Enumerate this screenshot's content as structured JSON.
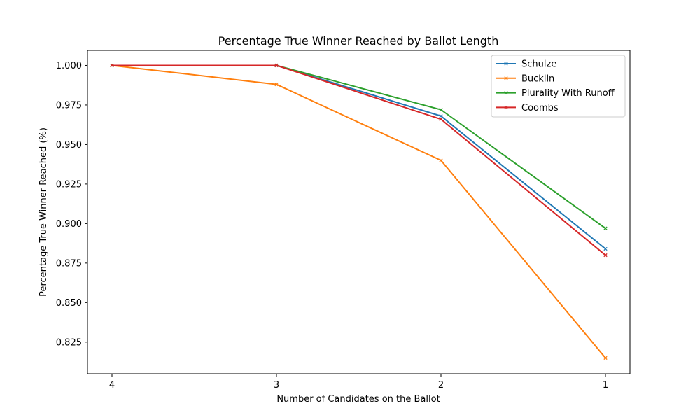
{
  "chart_data": {
    "type": "line",
    "title": "Percentage True Winner Reached by Ballot Length",
    "xlabel": "Number of Candidates on the Ballot",
    "ylabel": "Percentage True Winner Reached (%)",
    "categories": [
      "4",
      "3",
      "2",
      "1"
    ],
    "ylim": [
      0.805,
      1.0095
    ],
    "yticks": [
      "0.825",
      "0.850",
      "0.875",
      "0.900",
      "0.925",
      "0.950",
      "0.975",
      "1.000"
    ],
    "grid": false,
    "legend_position": "top-right",
    "marker": "x",
    "series": [
      {
        "name": "Schulze",
        "color": "#1f77b4",
        "values": [
          1.0,
          1.0,
          0.968,
          0.884
        ]
      },
      {
        "name": "Bucklin",
        "color": "#ff7f0e",
        "values": [
          1.0,
          0.988,
          0.94,
          0.815
        ]
      },
      {
        "name": "Plurality With Runoff",
        "color": "#2ca02c",
        "values": [
          1.0,
          1.0,
          0.972,
          0.897
        ]
      },
      {
        "name": "Coombs",
        "color": "#d62728",
        "values": [
          1.0,
          1.0,
          0.966,
          0.88
        ]
      }
    ]
  }
}
